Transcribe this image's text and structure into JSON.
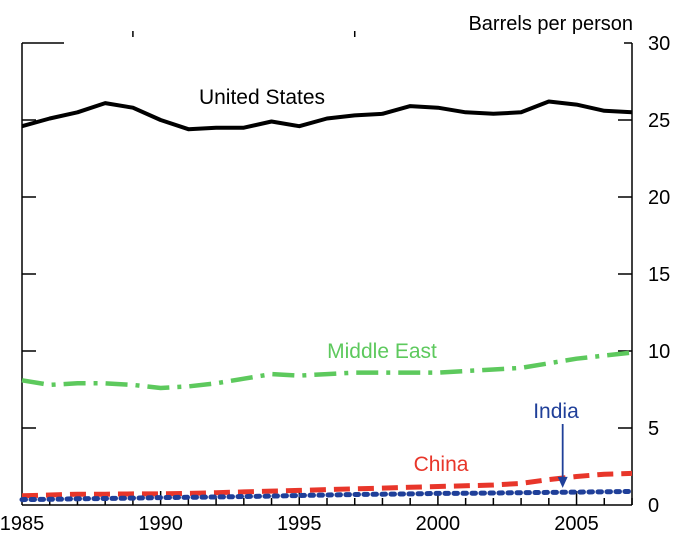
{
  "chart_data": {
    "type": "line",
    "ylabel": "Barrels per person",
    "xlim": [
      1985,
      2007
    ],
    "ylim": [
      0,
      30
    ],
    "x_ticks": [
      1985,
      1990,
      1995,
      2000,
      2005
    ],
    "y_ticks": [
      0,
      5,
      10,
      15,
      20,
      25,
      30
    ],
    "y_axis_side": "right",
    "grid": false,
    "legend": "inline labels",
    "x": [
      1985,
      1986,
      1987,
      1988,
      1989,
      1990,
      1991,
      1992,
      1993,
      1994,
      1995,
      1996,
      1997,
      1998,
      1999,
      2000,
      2001,
      2002,
      2003,
      2004,
      2005,
      2006,
      2007
    ],
    "series": [
      {
        "name": "United States",
        "color": "#000000",
        "style": "solid",
        "values": [
          24.6,
          25.1,
          25.5,
          26.1,
          25.8,
          25.0,
          24.4,
          24.5,
          24.5,
          24.9,
          24.6,
          25.1,
          25.3,
          25.4,
          25.9,
          25.8,
          25.5,
          25.4,
          25.5,
          26.2,
          26.0,
          25.6,
          25.5
        ]
      },
      {
        "name": "Middle East",
        "color": "#5dc95d",
        "style": "dashdot",
        "values": [
          8.1,
          7.8,
          7.9,
          7.9,
          7.8,
          7.6,
          7.7,
          7.9,
          8.2,
          8.5,
          8.4,
          8.5,
          8.6,
          8.6,
          8.6,
          8.6,
          8.7,
          8.8,
          8.9,
          9.2,
          9.5,
          9.7,
          9.9
        ]
      },
      {
        "name": "China",
        "color": "#e8362a",
        "style": "dashed",
        "values": [
          0.6,
          0.65,
          0.7,
          0.7,
          0.72,
          0.72,
          0.75,
          0.8,
          0.85,
          0.9,
          0.95,
          1.0,
          1.05,
          1.1,
          1.15,
          1.2,
          1.25,
          1.3,
          1.4,
          1.65,
          1.85,
          2.0,
          2.05
        ]
      },
      {
        "name": "India",
        "color": "#1f3f99",
        "style": "dotted",
        "values": [
          0.35,
          0.37,
          0.4,
          0.42,
          0.45,
          0.48,
          0.5,
          0.52,
          0.55,
          0.58,
          0.62,
          0.65,
          0.68,
          0.7,
          0.72,
          0.75,
          0.76,
          0.78,
          0.8,
          0.82,
          0.84,
          0.86,
          0.88
        ]
      }
    ]
  }
}
